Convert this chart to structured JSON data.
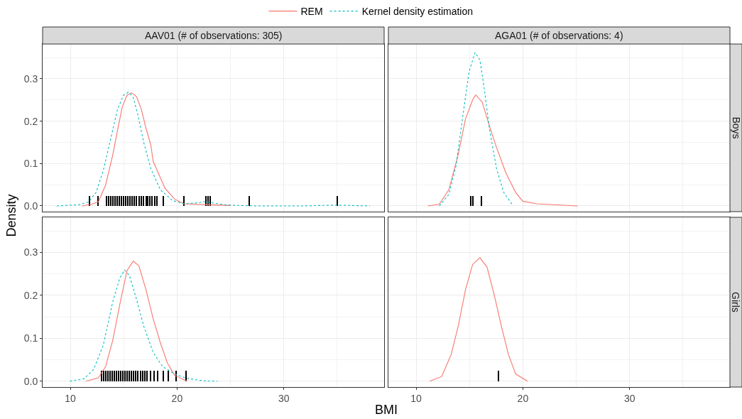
{
  "chart_data": [
    {
      "type": "line",
      "title": "AAV01 (# of observations: 305)",
      "ylabel": "Density",
      "legend": "top",
      "grid": true,
      "tick_labels": "y",
      "xlim": [
        7.4,
        39.4
      ],
      "xticks": [
        10,
        20,
        30
      ],
      "ylim": [
        -0.0135,
        0.382
      ],
      "yticks": [
        {
          "value": 0,
          "label": "0.0"
        },
        0.1,
        0.2,
        0.3
      ],
      "series": [
        {
          "name": "REM",
          "color": "#f8766d",
          "line_style": "solid",
          "x": [
            11.1,
            12.0,
            12.63,
            13.3,
            13.97,
            14.42,
            14.86,
            15.3,
            15.75,
            16.2,
            16.65,
            17.09,
            17.54,
            17.76,
            18.88,
            19.77,
            20.66,
            25.0
          ],
          "values": [
            0,
            0.004,
            0.01,
            0.049,
            0.12,
            0.178,
            0.233,
            0.261,
            0.267,
            0.258,
            0.228,
            0.183,
            0.144,
            0.105,
            0.041,
            0.016,
            0.005,
            0.001
          ]
        },
        {
          "name": "Kernel density estimation",
          "color": "#00bfc4",
          "line_style": "dotted",
          "x": [
            8.73,
            10.85,
            11.74,
            12.41,
            13.08,
            13.75,
            14.42,
            14.97,
            15.42,
            15.87,
            16.31,
            16.87,
            17.54,
            18.43,
            19.55,
            20.66,
            21.78,
            22.67,
            23.56,
            24.67,
            27.35,
            31.8,
            35.0,
            36.3,
            38.05
          ],
          "values": [
            0,
            0.003,
            0.01,
            0.032,
            0.083,
            0.155,
            0.228,
            0.261,
            0.268,
            0.258,
            0.217,
            0.15,
            0.088,
            0.038,
            0.013,
            0.005,
            0.007,
            0.01,
            0.006,
            0.002,
            0,
            0,
            0.002,
            0.001,
            0
          ]
        },
        {
          "type": "bar",
          "color": "#000000",
          "x": [
            11.78,
            12.56,
            13.4,
            13.6,
            13.8,
            14.0,
            14.2,
            14.4,
            14.6,
            14.8,
            15.0,
            15.2,
            15.4,
            15.6,
            15.8,
            16.0,
            16.2,
            16.47,
            16.65,
            16.87,
            17.09,
            17.25,
            17.45,
            17.67,
            17.9,
            18.12,
            18.7,
            20.62,
            22.67,
            22.89,
            23.1,
            26.73,
            35.0
          ],
          "values": [
            0.024,
            0.024,
            0.024,
            0.024,
            0.024,
            0.024,
            0.024,
            0.024,
            0.024,
            0.024,
            0.024,
            0.024,
            0.024,
            0.024,
            0.024,
            0.024,
            0.024,
            0.024,
            0.024,
            0.024,
            0.024,
            0.024,
            0.024,
            0.024,
            0.024,
            0.024,
            0.024,
            0.024,
            0.024,
            0.024,
            0.024,
            0.024,
            0.024
          ]
        }
      ]
    },
    {
      "type": "line",
      "title": "AGA01 (# of observations: 4)",
      "annotations": [
        "Boys"
      ],
      "grid": true,
      "tick_labels": false,
      "xlim": [
        7.4,
        39.4
      ],
      "xticks": [
        10,
        20,
        30
      ],
      "ylim": [
        -0.0135,
        0.382
      ],
      "yticks": [
        0,
        0.1,
        0.2,
        0.3
      ],
      "series": [
        {
          "color": "#f8766d",
          "line_style": "solid",
          "x": [
            11.1,
            12.17,
            13.06,
            13.95,
            14.62,
            15.29,
            15.58,
            16.19,
            16.86,
            17.53,
            18.42,
            19.32,
            19.99,
            21.33,
            25.12
          ],
          "values": [
            0,
            0.004,
            0.038,
            0.122,
            0.205,
            0.25,
            0.262,
            0.245,
            0.189,
            0.138,
            0.077,
            0.032,
            0.011,
            0.005,
            0
          ]
        },
        {
          "color": "#00bfc4",
          "line_style": "dotted",
          "x": [
            12.17,
            13.06,
            13.73,
            14.4,
            14.96,
            15.52,
            15.97,
            16.41,
            16.86,
            17.53,
            18.2,
            19.09
          ],
          "values": [
            0,
            0.027,
            0.094,
            0.217,
            0.317,
            0.362,
            0.345,
            0.272,
            0.183,
            0.088,
            0.032,
            0
          ]
        },
        {
          "type": "bar",
          "color": "#000000",
          "x": [
            15.12,
            15.34,
            16.14
          ],
          "values": [
            0.024,
            0.024,
            0.024
          ]
        }
      ]
    },
    {
      "type": "line",
      "xlabel": "BMI",
      "grid": true,
      "xlim": [
        7.4,
        39.4
      ],
      "xticks": [
        10,
        20,
        30
      ],
      "ylim": [
        -0.0135,
        0.382
      ],
      "yticks": [
        {
          "value": 0,
          "label": "0.0"
        },
        0.1,
        0.2,
        0.3
      ],
      "series": [
        {
          "color": "#f8766d",
          "line_style": "solid",
          "x": [
            11.47,
            12.63,
            13.3,
            13.97,
            14.64,
            15.31,
            15.89,
            16.42,
            17.09,
            17.76,
            18.43,
            19.1,
            19.77,
            20.93
          ],
          "values": [
            0,
            0.008,
            0.034,
            0.095,
            0.18,
            0.258,
            0.28,
            0.269,
            0.213,
            0.146,
            0.09,
            0.042,
            0.014,
            0
          ]
        },
        {
          "color": "#00bfc4",
          "line_style": "dotted",
          "x": [
            9.96,
            11.29,
            12.19,
            13.08,
            13.97,
            14.64,
            15.08,
            15.53,
            16.2,
            16.87,
            17.76,
            18.65,
            19.77,
            20.88,
            22.44,
            23.78
          ],
          "values": [
            0,
            0.006,
            0.028,
            0.084,
            0.185,
            0.241,
            0.259,
            0.247,
            0.191,
            0.129,
            0.067,
            0.034,
            0.017,
            0.007,
            0.001,
            0
          ]
        },
        {
          "type": "bar",
          "color": "#000000",
          "x": [
            12.9,
            13.1,
            13.3,
            13.5,
            13.7,
            13.9,
            14.1,
            14.3,
            14.5,
            14.7,
            14.9,
            15.1,
            15.3,
            15.5,
            15.7,
            15.9,
            16.1,
            16.3,
            16.6,
            16.78,
            17.0,
            17.2,
            17.49,
            17.87,
            18.21,
            18.7,
            19.21,
            19.88,
            20.82
          ],
          "values": [
            0.025,
            0.025,
            0.025,
            0.025,
            0.025,
            0.025,
            0.025,
            0.025,
            0.025,
            0.025,
            0.025,
            0.025,
            0.025,
            0.025,
            0.025,
            0.025,
            0.025,
            0.025,
            0.025,
            0.025,
            0.025,
            0.025,
            0.025,
            0.025,
            0.025,
            0.025,
            0.025,
            0.025,
            0.025
          ]
        }
      ]
    },
    {
      "type": "line",
      "annotations": [
        "Girls"
      ],
      "grid": true,
      "tick_labels": "x",
      "xlim": [
        7.4,
        39.4
      ],
      "xticks": [
        10,
        20,
        30
      ],
      "ylim": [
        -0.0135,
        0.382
      ],
      "yticks": [
        0,
        0.1,
        0.2,
        0.3
      ],
      "series": [
        {
          "color": "#f8766d",
          "line_style": "solid",
          "x": [
            11.27,
            12.39,
            13.28,
            13.95,
            14.62,
            15.29,
            15.97,
            16.64,
            17.31,
            17.98,
            18.65,
            19.32,
            20.43
          ],
          "values": [
            0,
            0.011,
            0.062,
            0.129,
            0.213,
            0.272,
            0.288,
            0.266,
            0.202,
            0.129,
            0.062,
            0.017,
            0
          ]
        },
        {
          "type": "bar",
          "color": "#000000",
          "x": [
            17.71
          ],
          "values": [
            0.025
          ]
        }
      ]
    }
  ]
}
